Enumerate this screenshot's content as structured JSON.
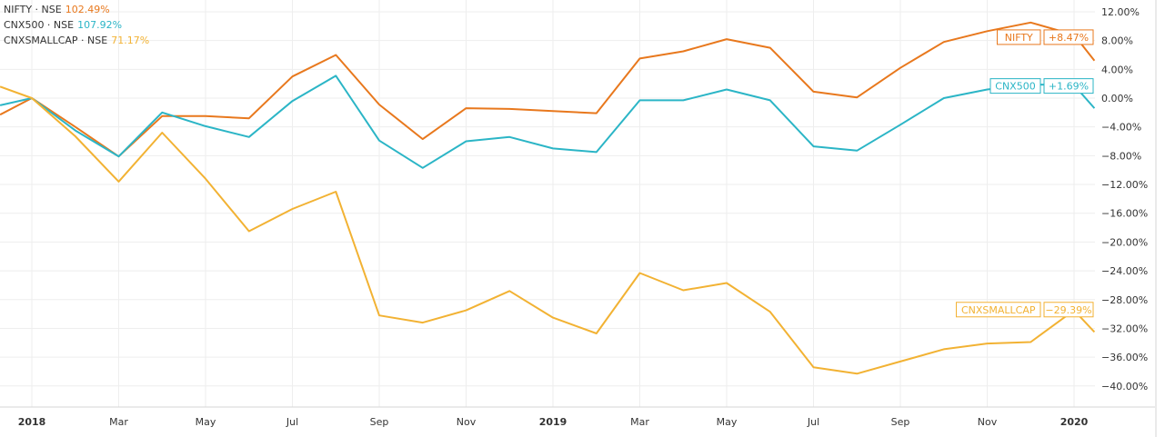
{
  "legend": [
    {
      "name": "NIFTY · NSE",
      "value": "102.49%",
      "color": "#e8781d"
    },
    {
      "name": "CNX500 · NSE",
      "value": "107.92%",
      "color": "#2bb5c6"
    },
    {
      "name": "CNXSMALLCAP · NSE",
      "value": "71.17%",
      "color": "#f2b233"
    }
  ],
  "chart_data": {
    "type": "line",
    "title": "",
    "xlabel": "",
    "ylabel": "",
    "x_unit": "months since Jan 2018",
    "x": [
      -0.73,
      0,
      1,
      2,
      3,
      4,
      5,
      6,
      7,
      8,
      9,
      10,
      11,
      12,
      13,
      14,
      15,
      16,
      17,
      18,
      19,
      20,
      21,
      22,
      23,
      24,
      24.47
    ],
    "x_ticks": [
      {
        "m": 0,
        "label": "2018"
      },
      {
        "m": 2,
        "label": "Mar"
      },
      {
        "m": 4,
        "label": "May"
      },
      {
        "m": 6,
        "label": "Jul"
      },
      {
        "m": 8,
        "label": "Sep"
      },
      {
        "m": 10,
        "label": "Nov"
      },
      {
        "m": 12,
        "label": "2019"
      },
      {
        "m": 14,
        "label": "Mar"
      },
      {
        "m": 16,
        "label": "May"
      },
      {
        "m": 18,
        "label": "Jul"
      },
      {
        "m": 20,
        "label": "Sep"
      },
      {
        "m": 22,
        "label": "Nov"
      },
      {
        "m": 24,
        "label": "2020"
      }
    ],
    "y_ticks": [
      12,
      8,
      4,
      0,
      -4,
      -8,
      -12,
      -16,
      -20,
      -24,
      -28,
      -32,
      -36,
      -40
    ],
    "y_tick_labels": [
      "12.00%",
      "8.00%",
      "4.00%",
      "0.00%",
      "−4.00%",
      "−8.00%",
      "−12.00%",
      "−16.00%",
      "−20.00%",
      "−24.00%",
      "−28.00%",
      "−32.00%",
      "−36.00%",
      "−40.00%"
    ],
    "ylim": [
      -42,
      13.5
    ],
    "grid": true,
    "series": [
      {
        "name": "NIFTY",
        "color": "#e8781d",
        "label_value": "+8.47%",
        "label_at": 8.47,
        "values": [
          -2.3,
          0,
          -4,
          -8.1,
          -2.5,
          -2.5,
          -2.8,
          3.0,
          6.0,
          -0.9,
          -5.7,
          -1.4,
          -1.5,
          -1.8,
          -2.1,
          5.5,
          6.5,
          8.2,
          7.0,
          0.9,
          0.1,
          4.2,
          7.8,
          9.3,
          10.5,
          8.8,
          5.2
        ]
      },
      {
        "name": "CNX500",
        "color": "#2bb5c6",
        "label_value": "+1.69%",
        "label_at": 1.69,
        "values": [
          -1,
          0,
          -4.5,
          -8.1,
          -2,
          -3.9,
          -5.4,
          -0.4,
          3.1,
          -5.9,
          -9.7,
          -6,
          -5.4,
          -7,
          -7.5,
          -0.3,
          -0.3,
          1.2,
          -0.3,
          -6.7,
          -7.3,
          -3.7,
          0,
          1.2,
          1.9,
          1.8,
          -1.4
        ]
      },
      {
        "name": "CNXSMALLCAP",
        "color": "#f2b233",
        "label_value": "−29.39%",
        "label_at": -29.39,
        "values": [
          1.6,
          0,
          -5.3,
          -11.6,
          -4.8,
          -11.2,
          -18.5,
          -15.4,
          -13,
          -30.2,
          -31.2,
          -29.5,
          -26.8,
          -30.5,
          -32.7,
          -24.3,
          -26.7,
          -25.7,
          -29.7,
          -37.4,
          -38.3,
          -36.6,
          -34.9,
          -34.1,
          -33.9,
          -29.5,
          -32.5
        ]
      }
    ]
  }
}
